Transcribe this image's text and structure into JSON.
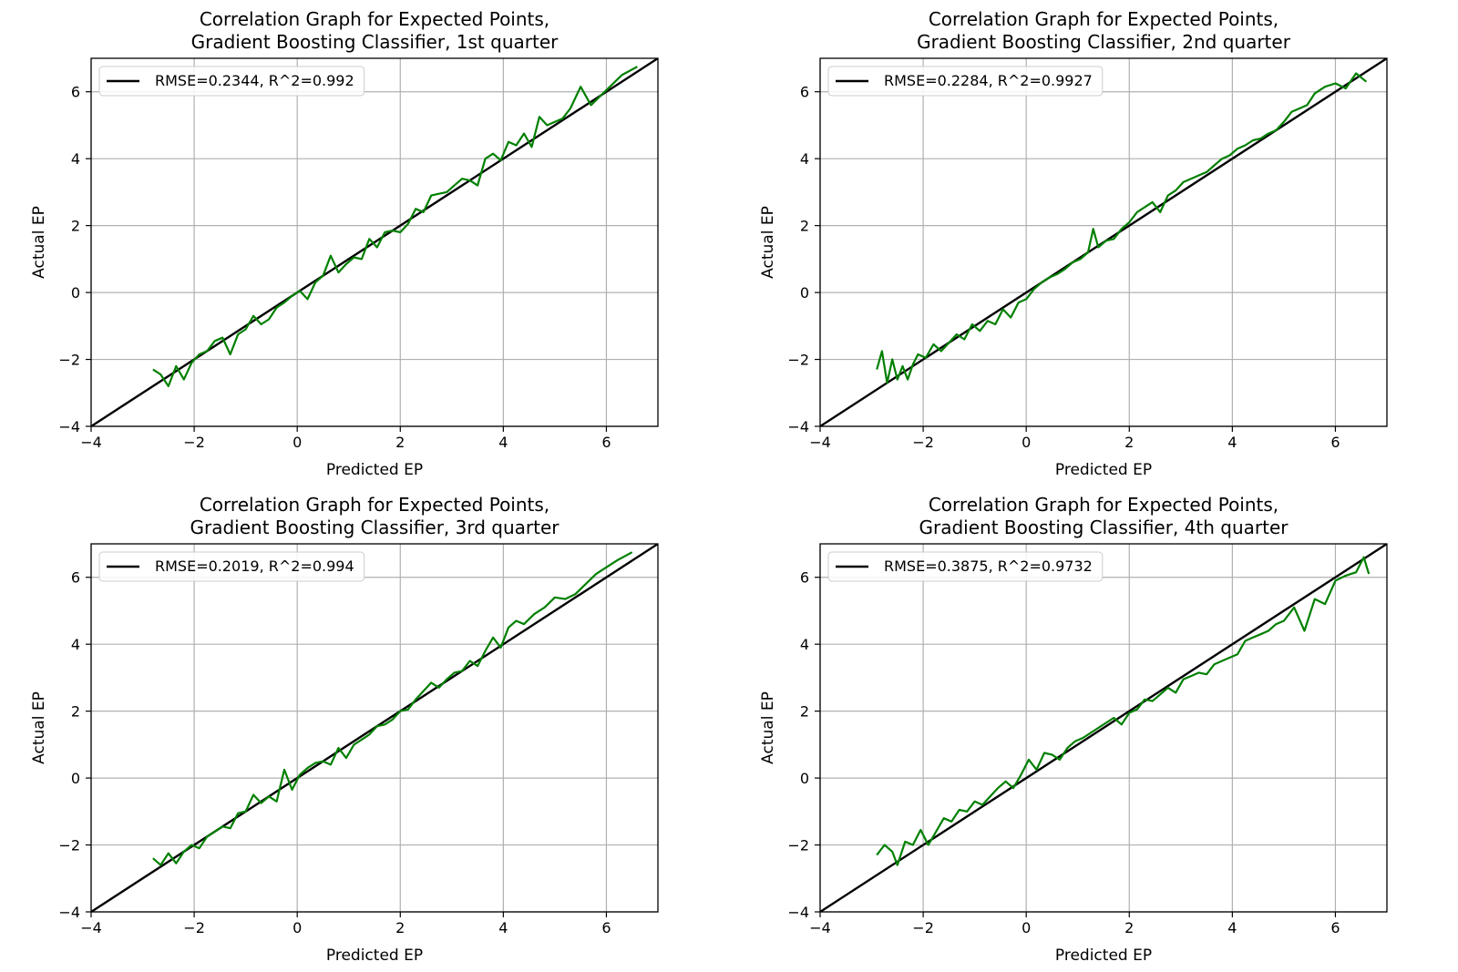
{
  "chart_data": [
    {
      "type": "line",
      "title": "Correlation Graph for Expected Points,\nGradient Boosting Classifier, 1st quarter",
      "xlabel": "Predicted EP",
      "ylabel": "Actual EP",
      "xlim": [
        -4,
        7
      ],
      "ylim": [
        -4,
        7
      ],
      "xticks": [
        -4,
        -2,
        0,
        2,
        4,
        6
      ],
      "yticks": [
        -4,
        -2,
        0,
        2,
        4,
        6
      ],
      "tick_labels": [
        "−4",
        "−2",
        "0",
        "2",
        "4",
        "6"
      ],
      "grid": true,
      "legend": "upper-left",
      "series": [
        {
          "name": "RMSE=0.2344, R^2=0.992",
          "color": "#000000",
          "kind": "reference",
          "x": [
            -4,
            7
          ],
          "y": [
            -4,
            7
          ]
        },
        {
          "color": "#008000",
          "x": [
            -2.8,
            -2.65,
            -2.5,
            -2.35,
            -2.2,
            -2.05,
            -1.9,
            -1.75,
            -1.6,
            -1.45,
            -1.3,
            -1.15,
            -1.0,
            -0.85,
            -0.7,
            -0.55,
            -0.4,
            -0.25,
            -0.1,
            0.05,
            0.2,
            0.35,
            0.5,
            0.65,
            0.8,
            0.95,
            1.1,
            1.25,
            1.4,
            1.55,
            1.7,
            1.85,
            2.0,
            2.15,
            2.3,
            2.45,
            2.6,
            2.75,
            2.9,
            3.05,
            3.2,
            3.35,
            3.5,
            3.65,
            3.8,
            3.95,
            4.1,
            4.25,
            4.4,
            4.55,
            4.7,
            4.85,
            5.0,
            5.15,
            5.3,
            5.5,
            5.7,
            5.9,
            6.1,
            6.3,
            6.6
          ],
          "y": [
            -2.3,
            -2.45,
            -2.8,
            -2.2,
            -2.6,
            -2.1,
            -1.85,
            -1.75,
            -1.45,
            -1.35,
            -1.85,
            -1.25,
            -1.1,
            -0.7,
            -0.95,
            -0.8,
            -0.45,
            -0.3,
            -0.1,
            0.05,
            -0.2,
            0.3,
            0.5,
            1.1,
            0.6,
            0.85,
            1.05,
            1.0,
            1.6,
            1.35,
            1.8,
            1.85,
            1.8,
            2.05,
            2.5,
            2.4,
            2.9,
            2.95,
            3.0,
            3.2,
            3.4,
            3.35,
            3.2,
            4.0,
            4.15,
            3.95,
            4.5,
            4.4,
            4.75,
            4.35,
            5.25,
            5.0,
            5.1,
            5.2,
            5.5,
            6.15,
            5.6,
            5.9,
            6.2,
            6.5,
            6.75
          ]
        }
      ]
    },
    {
      "type": "line",
      "title": "Correlation Graph for Expected Points,\nGradient Boosting Classifier, 2nd quarter",
      "xlabel": "Predicted EP",
      "ylabel": "Actual EP",
      "xlim": [
        -4,
        7
      ],
      "ylim": [
        -4,
        7
      ],
      "xticks": [
        -4,
        -2,
        0,
        2,
        4,
        6
      ],
      "yticks": [
        -4,
        -2,
        0,
        2,
        4,
        6
      ],
      "tick_labels": [
        "−4",
        "−2",
        "0",
        "2",
        "4",
        "6"
      ],
      "grid": true,
      "legend": "upper-left",
      "series": [
        {
          "name": "RMSE=0.2284, R^2=0.9927",
          "color": "#000000",
          "kind": "reference",
          "x": [
            -4,
            7
          ],
          "y": [
            -4,
            7
          ]
        },
        {
          "color": "#008000",
          "x": [
            -2.9,
            -2.8,
            -2.7,
            -2.6,
            -2.5,
            -2.4,
            -2.3,
            -2.2,
            -2.1,
            -1.95,
            -1.8,
            -1.65,
            -1.5,
            -1.35,
            -1.2,
            -1.05,
            -0.9,
            -0.75,
            -0.6,
            -0.45,
            -0.3,
            -0.15,
            0.0,
            0.15,
            0.3,
            0.45,
            0.6,
            0.75,
            0.9,
            1.05,
            1.2,
            1.3,
            1.4,
            1.55,
            1.7,
            1.85,
            2.0,
            2.15,
            2.3,
            2.45,
            2.6,
            2.75,
            2.9,
            3.05,
            3.2,
            3.35,
            3.5,
            3.65,
            3.8,
            3.95,
            4.1,
            4.25,
            4.4,
            4.55,
            4.7,
            4.85,
            5.0,
            5.15,
            5.3,
            5.45,
            5.6,
            5.8,
            6.0,
            6.2,
            6.4,
            6.6
          ],
          "y": [
            -2.3,
            -1.75,
            -2.7,
            -2.0,
            -2.6,
            -2.2,
            -2.6,
            -2.15,
            -1.85,
            -1.95,
            -1.55,
            -1.75,
            -1.5,
            -1.25,
            -1.4,
            -0.95,
            -1.15,
            -0.85,
            -0.95,
            -0.5,
            -0.75,
            -0.3,
            -0.2,
            0.1,
            0.3,
            0.45,
            0.55,
            0.7,
            0.9,
            1.0,
            1.2,
            1.9,
            1.35,
            1.55,
            1.6,
            1.9,
            2.1,
            2.4,
            2.55,
            2.7,
            2.4,
            2.9,
            3.05,
            3.3,
            3.4,
            3.5,
            3.6,
            3.8,
            4.0,
            4.1,
            4.3,
            4.4,
            4.55,
            4.6,
            4.75,
            4.85,
            5.1,
            5.4,
            5.5,
            5.6,
            5.95,
            6.15,
            6.25,
            6.1,
            6.55,
            6.3
          ]
        }
      ]
    },
    {
      "type": "line",
      "title": "Correlation Graph for Expected Points,\nGradient Boosting Classifier, 3rd quarter",
      "xlabel": "Predicted EP",
      "ylabel": "Actual EP",
      "xlim": [
        -4,
        7
      ],
      "ylim": [
        -4,
        7
      ],
      "xticks": [
        -4,
        -2,
        0,
        2,
        4,
        6
      ],
      "yticks": [
        -4,
        -2,
        0,
        2,
        4,
        6
      ],
      "tick_labels": [
        "−4",
        "−2",
        "0",
        "2",
        "4",
        "6"
      ],
      "grid": true,
      "legend": "upper-left",
      "series": [
        {
          "name": "RMSE=0.2019, R^2=0.994",
          "color": "#000000",
          "kind": "reference",
          "x": [
            -4,
            7
          ],
          "y": [
            -4,
            7
          ]
        },
        {
          "color": "#008000",
          "x": [
            -2.8,
            -2.65,
            -2.5,
            -2.35,
            -2.2,
            -2.05,
            -1.9,
            -1.75,
            -1.6,
            -1.45,
            -1.3,
            -1.15,
            -1.0,
            -0.85,
            -0.7,
            -0.55,
            -0.4,
            -0.25,
            -0.1,
            0.05,
            0.2,
            0.35,
            0.5,
            0.65,
            0.8,
            0.95,
            1.1,
            1.25,
            1.4,
            1.55,
            1.7,
            1.85,
            2.0,
            2.15,
            2.3,
            2.45,
            2.6,
            2.75,
            2.9,
            3.05,
            3.2,
            3.35,
            3.5,
            3.65,
            3.8,
            3.95,
            4.1,
            4.25,
            4.4,
            4.6,
            4.8,
            5.0,
            5.2,
            5.4,
            5.6,
            5.8,
            6.0,
            6.2,
            6.5
          ],
          "y": [
            -2.4,
            -2.6,
            -2.25,
            -2.55,
            -2.2,
            -2.0,
            -2.1,
            -1.75,
            -1.6,
            -1.45,
            -1.5,
            -1.05,
            -1.0,
            -0.5,
            -0.75,
            -0.55,
            -0.7,
            0.25,
            -0.35,
            0.1,
            0.3,
            0.45,
            0.5,
            0.4,
            0.9,
            0.6,
            1.0,
            1.15,
            1.3,
            1.55,
            1.6,
            1.75,
            2.0,
            2.05,
            2.35,
            2.6,
            2.85,
            2.7,
            2.95,
            3.15,
            3.2,
            3.5,
            3.35,
            3.8,
            4.2,
            3.9,
            4.5,
            4.7,
            4.6,
            4.9,
            5.1,
            5.4,
            5.35,
            5.5,
            5.8,
            6.1,
            6.3,
            6.5,
            6.75
          ]
        }
      ]
    },
    {
      "type": "line",
      "title": "Correlation Graph for Expected Points,\nGradient Boosting Classifier, 4th quarter",
      "xlabel": "Predicted EP",
      "ylabel": "Actual EP",
      "xlim": [
        -4,
        7
      ],
      "ylim": [
        -4,
        7
      ],
      "xticks": [
        -4,
        -2,
        0,
        2,
        4,
        6
      ],
      "yticks": [
        -4,
        -2,
        0,
        2,
        4,
        6
      ],
      "tick_labels": [
        "−4",
        "−2",
        "0",
        "2",
        "4",
        "6"
      ],
      "grid": true,
      "legend": "upper-left",
      "series": [
        {
          "name": "RMSE=0.3875, R^2=0.9732",
          "color": "#000000",
          "kind": "reference",
          "x": [
            -4,
            7
          ],
          "y": [
            -4,
            7
          ]
        },
        {
          "color": "#008000",
          "x": [
            -2.9,
            -2.75,
            -2.6,
            -2.5,
            -2.35,
            -2.2,
            -2.05,
            -1.9,
            -1.75,
            -1.6,
            -1.45,
            -1.3,
            -1.15,
            -1.0,
            -0.85,
            -0.7,
            -0.55,
            -0.4,
            -0.25,
            -0.1,
            0.05,
            0.2,
            0.35,
            0.5,
            0.65,
            0.8,
            0.95,
            1.1,
            1.25,
            1.4,
            1.55,
            1.7,
            1.85,
            2.0,
            2.15,
            2.3,
            2.45,
            2.6,
            2.75,
            2.9,
            3.05,
            3.2,
            3.35,
            3.5,
            3.65,
            3.8,
            3.95,
            4.1,
            4.25,
            4.4,
            4.55,
            4.7,
            4.85,
            5.0,
            5.2,
            5.4,
            5.6,
            5.8,
            6.0,
            6.2,
            6.4,
            6.55,
            6.65
          ],
          "y": [
            -2.3,
            -2.0,
            -2.2,
            -2.6,
            -1.9,
            -2.0,
            -1.55,
            -2.0,
            -1.6,
            -1.2,
            -1.3,
            -0.95,
            -1.0,
            -0.7,
            -0.8,
            -0.55,
            -0.3,
            -0.1,
            -0.3,
            0.1,
            0.55,
            0.25,
            0.75,
            0.7,
            0.55,
            0.9,
            1.1,
            1.2,
            1.35,
            1.5,
            1.65,
            1.8,
            1.6,
            1.95,
            2.05,
            2.35,
            2.3,
            2.5,
            2.7,
            2.55,
            2.95,
            3.05,
            3.15,
            3.1,
            3.4,
            3.5,
            3.6,
            3.7,
            4.1,
            4.2,
            4.3,
            4.4,
            4.6,
            4.7,
            5.1,
            4.4,
            5.35,
            5.2,
            5.9,
            6.05,
            6.15,
            6.6,
            6.1
          ]
        }
      ]
    }
  ]
}
